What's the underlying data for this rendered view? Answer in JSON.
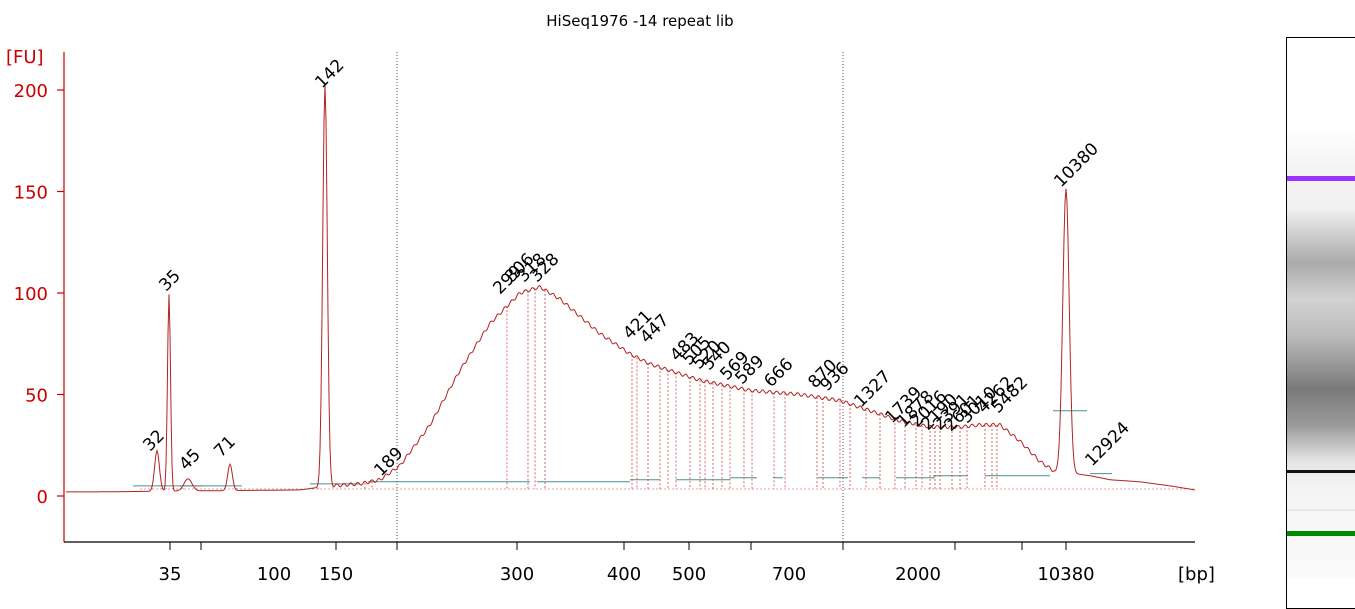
{
  "chart_data": {
    "type": "line",
    "title": "HiSeq1976 -14  repeat lib",
    "ylabel": "[FU]",
    "xlabel": "[bp]",
    "ylim": [
      -20,
      215
    ],
    "yticks": [
      0,
      50,
      100,
      150,
      200
    ],
    "xticks": [
      "35",
      "100",
      "150",
      "300",
      "400",
      "500",
      "700",
      "2000",
      "10380"
    ],
    "lower_marker": {
      "label": "35",
      "color": "#008800"
    },
    "upper_marker": {
      "label": "10380",
      "color": "#9933ff"
    },
    "peaks": [
      {
        "label": "32",
        "height": 20
      },
      {
        "label": "35",
        "height": 97,
        "marker": "lower"
      },
      {
        "label": "45",
        "height": 8
      },
      {
        "label": "71",
        "height": 13
      },
      {
        "label": "142",
        "height": 198
      },
      {
        "label": "189",
        "height": 9
      },
      {
        "label": "299",
        "height": 96
      },
      {
        "label": "306",
        "height": 102
      },
      {
        "label": "318",
        "height": 103
      },
      {
        "label": "328",
        "height": 103
      },
      {
        "label": "421",
        "height": 70
      },
      {
        "label": "447",
        "height": 66
      },
      {
        "label": "483",
        "height": 62
      },
      {
        "label": "505",
        "height": 60
      },
      {
        "label": "520",
        "height": 58
      },
      {
        "label": "540",
        "height": 57
      },
      {
        "label": "569",
        "height": 54
      },
      {
        "label": "589",
        "height": 53
      },
      {
        "label": "666",
        "height": 50
      },
      {
        "label": "870",
        "height": 47
      },
      {
        "label": "936",
        "height": 46
      },
      {
        "label": "1327",
        "height": 42
      },
      {
        "label": "1739",
        "height": 36
      },
      {
        "label": "1878",
        "height": 34
      },
      {
        "label": "2016",
        "height": 34
      },
      {
        "label": "2190",
        "height": 34
      },
      {
        "label": "2391",
        "height": 35
      },
      {
        "label": "2601",
        "height": 35
      },
      {
        "label": "3010",
        "height": 36
      },
      {
        "label": "4262",
        "height": 36
      },
      {
        "label": "5482",
        "height": 35
      },
      {
        "label": "10380",
        "height": 148,
        "marker": "upper"
      },
      {
        "label": "12924",
        "height": 11
      }
    ],
    "grid": false
  }
}
